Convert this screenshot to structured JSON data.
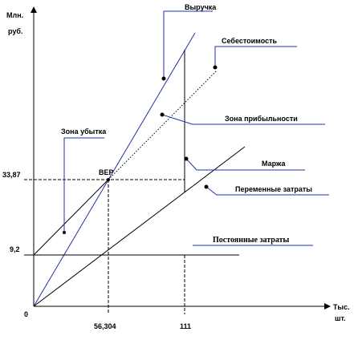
{
  "axes": {
    "y_unit": [
      "Млн.",
      "руб."
    ],
    "x_unit": [
      "Тыс.",
      "шт."
    ],
    "origin": "0",
    "y_ticks": [
      "33,87",
      "9,2"
    ],
    "x_ticks": [
      "56,304",
      "111"
    ]
  },
  "labels": {
    "revenue": "Выручка",
    "cost": "Себестоимость",
    "profit_zone": "Зона прибыльности",
    "loss_zone": "Зона убытка",
    "bep": "BEP",
    "margin": "Маржа",
    "variable_costs": "Переменные затраты",
    "fixed_costs": "Постоянные затраты"
  }
}
